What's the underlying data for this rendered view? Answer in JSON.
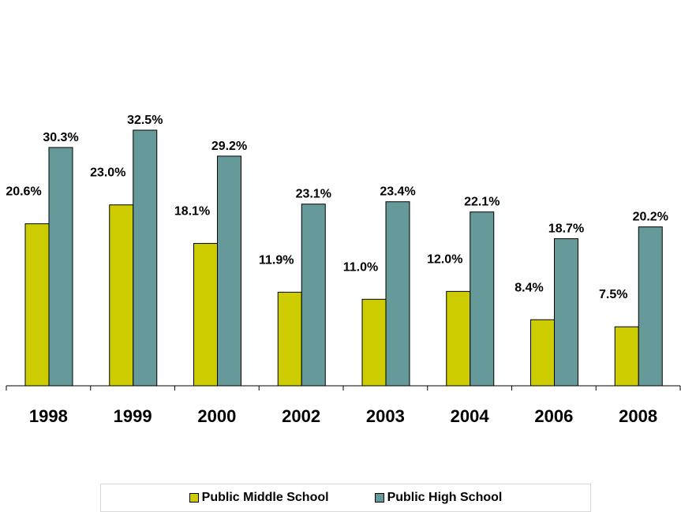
{
  "chart_data": {
    "type": "bar",
    "categories": [
      "1998",
      "1999",
      "2000",
      "2002",
      "2003",
      "2004",
      "2006",
      "2008"
    ],
    "series": [
      {
        "name": "Public Middle School",
        "color": "#cccc00",
        "values": [
          20.6,
          23.0,
          18.1,
          11.9,
          11.0,
          12.0,
          8.4,
          7.5
        ],
        "labels": [
          "20.6%",
          "23.0%",
          "18.1%",
          "11.9%",
          "11.0%",
          "12.0%",
          "8.4%",
          "7.5%"
        ]
      },
      {
        "name": "Public High School",
        "color": "#669999",
        "values": [
          30.3,
          32.5,
          29.2,
          23.1,
          23.4,
          22.1,
          18.7,
          20.2
        ],
        "labels": [
          "30.3%",
          "32.5%",
          "29.2%",
          "23.1%",
          "23.4%",
          "22.1%",
          "18.7%",
          "20.2%"
        ]
      }
    ],
    "title": "",
    "xlabel": "",
    "ylabel": "",
    "ylim": [
      0,
      32.5
    ],
    "grid": false,
    "legend": "bottom"
  }
}
